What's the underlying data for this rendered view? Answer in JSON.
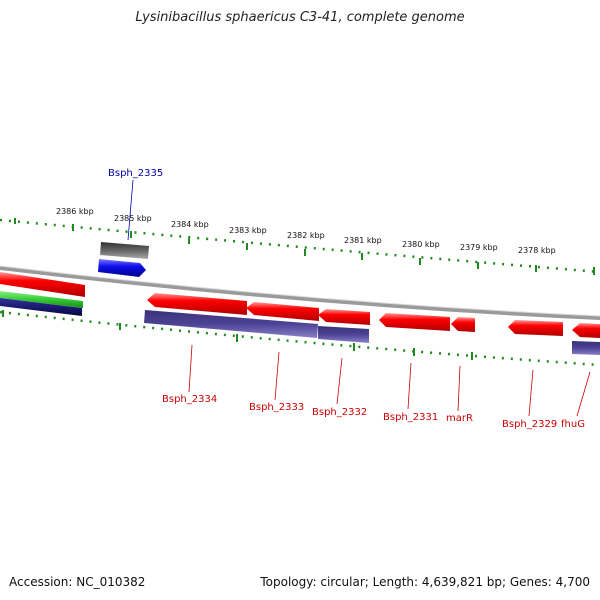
{
  "title": "Lysinibacillus sphaericus C3-41, complete genome",
  "footer": {
    "accession": "Accession: NC_010382",
    "topology": "Topology: circular; Length: 4,639,821 bp; Genes: 4,700"
  },
  "colors": {
    "backbone": "#8a8a8a",
    "tick": "#1f8a1f",
    "gene_red": "#ff0000",
    "gene_blue": "#1010ee",
    "gene_gray": "#555555",
    "gene_purple": "#4a3f8f",
    "gene_green": "#33cc33",
    "gene_navy": "#0a0a6a",
    "label_red": "#cc0000",
    "label_blue": "#0000aa"
  },
  "kbp_labels": [
    "2386 kbp",
    "2385 kbp",
    "2384 kbp",
    "2383 kbp",
    "2382 kbp",
    "2381 kbp",
    "2380 kbp",
    "2379 kbp",
    "2378 kbp"
  ],
  "gene_labels": [
    {
      "name": "Bsph_2335",
      "strand": "forward"
    },
    {
      "name": "Bsph_2334",
      "strand": "reverse"
    },
    {
      "name": "Bsph_2333",
      "strand": "reverse"
    },
    {
      "name": "Bsph_2332",
      "strand": "reverse"
    },
    {
      "name": "Bsph_2331",
      "strand": "reverse"
    },
    {
      "name": "marR",
      "strand": "reverse"
    },
    {
      "name": "Bsph_2329",
      "strand": "reverse"
    },
    {
      "name": "fhuG",
      "strand": "reverse"
    }
  ]
}
